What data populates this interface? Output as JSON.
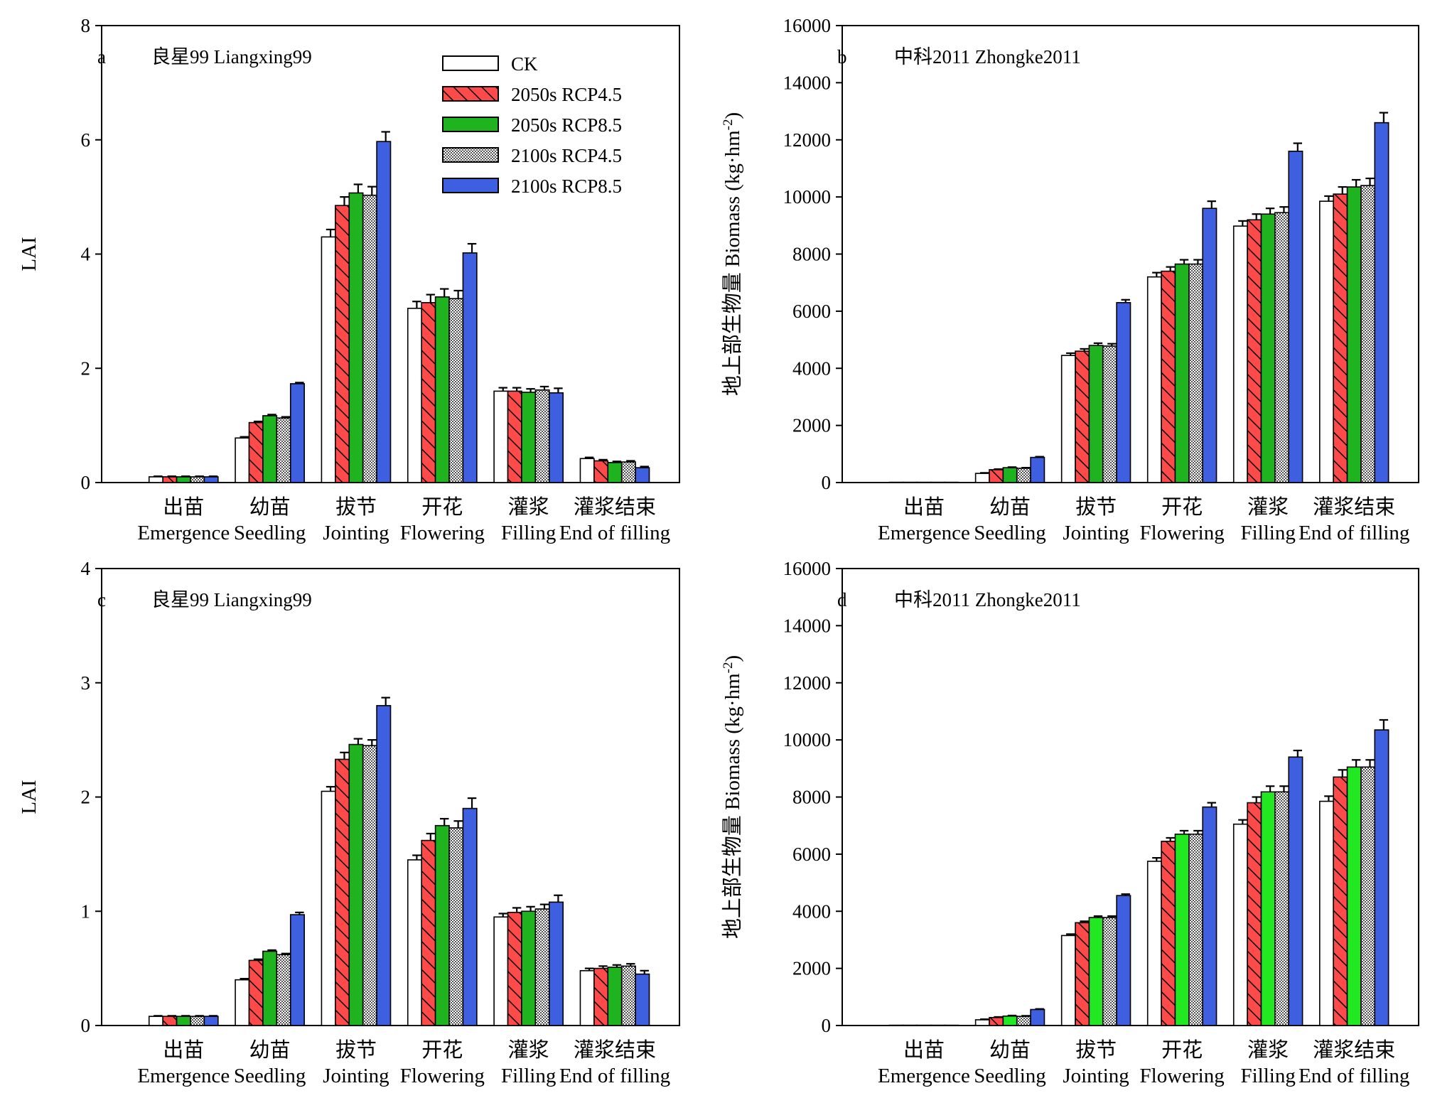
{
  "categories_cn": [
    "出苗",
    "幼苗",
    "拔节",
    "开花",
    "灌浆",
    "灌浆结束"
  ],
  "categories_en": [
    "Emergence",
    "Seedling",
    "Jointing",
    "Flowering",
    "Filling",
    "End of filling"
  ],
  "legend": [
    "CK",
    "2050s RCP4.5",
    "2050s RCP8.5",
    "2100s RCP4.5",
    "2100s RCP8.5"
  ],
  "colors": {
    "ck": "#ffffff",
    "rcp45_2050": "#ff4a4a",
    "rcp85_2050_panel_b": "#1fb41f",
    "rcp85_2050_panel_d": "#22e822",
    "rcp45_2100": "checkered grey",
    "rcp85_2100": "#3d5fe0"
  },
  "chart_data": [
    {
      "id": "a",
      "type": "bar",
      "letter": "a",
      "title": "良星99 Liangxing99",
      "ylabel": "LAI",
      "ylim": [
        0,
        8
      ],
      "yticks": [
        0,
        2,
        4,
        6,
        8
      ],
      "categories": [
        "出苗 Emergence",
        "幼苗 Seedling",
        "拔节 Jointing",
        "开花 Flowering",
        "灌浆 Filling",
        "灌浆结束 End of filling"
      ],
      "series": [
        {
          "name": "CK",
          "values": [
            0.1,
            0.78,
            4.3,
            3.05,
            1.6,
            0.42
          ],
          "errors": [
            0.01,
            0.02,
            0.13,
            0.12,
            0.06,
            0.02
          ]
        },
        {
          "name": "2050s RCP4.5",
          "values": [
            0.1,
            1.05,
            4.85,
            3.15,
            1.6,
            0.38
          ],
          "errors": [
            0.01,
            0.02,
            0.15,
            0.14,
            0.06,
            0.02
          ]
        },
        {
          "name": "2050s RCP8.5",
          "values": [
            0.1,
            1.17,
            5.07,
            3.25,
            1.58,
            0.35
          ],
          "errors": [
            0.01,
            0.02,
            0.15,
            0.14,
            0.06,
            0.02
          ]
        },
        {
          "name": "2100s RCP4.5",
          "values": [
            0.1,
            1.13,
            5.03,
            3.22,
            1.62,
            0.36
          ],
          "errors": [
            0.01,
            0.02,
            0.15,
            0.14,
            0.06,
            0.02
          ]
        },
        {
          "name": "2100s RCP8.5",
          "values": [
            0.1,
            1.73,
            5.97,
            4.02,
            1.57,
            0.26
          ],
          "errors": [
            0.01,
            0.02,
            0.17,
            0.16,
            0.08,
            0.02
          ]
        }
      ],
      "legend_shown": true,
      "legend_position": "top-center"
    },
    {
      "id": "b",
      "type": "bar",
      "letter": "b",
      "title": "中科2011 Zhongke2011",
      "ylabel": "地上部生物量 Biomass (kg·hm⁻²)",
      "ylabel_main": "地上部生物量 Biomass (kg·hm",
      "ylabel_sup": "-2",
      "ylabel_end": ")",
      "ylim": [
        0,
        16000
      ],
      "yticks": [
        0,
        2000,
        4000,
        6000,
        8000,
        10000,
        12000,
        14000,
        16000
      ],
      "categories": [
        "出苗 Emergence",
        "幼苗 Seedling",
        "拔节 Jointing",
        "开花 Flowering",
        "灌浆 Filling",
        "灌浆结束 End of filling"
      ],
      "series": [
        {
          "name": "CK",
          "values": [
            10,
            320,
            4450,
            7200,
            8980,
            9850
          ],
          "errors": [
            5,
            20,
            80,
            150,
            180,
            180
          ]
        },
        {
          "name": "2050s RCP4.5",
          "values": [
            10,
            450,
            4600,
            7400,
            9200,
            10100
          ],
          "errors": [
            5,
            20,
            80,
            150,
            200,
            250
          ]
        },
        {
          "name": "2050s RCP8.5",
          "values": [
            10,
            520,
            4800,
            7650,
            9400,
            10350
          ],
          "errors": [
            5,
            20,
            80,
            150,
            200,
            250
          ]
        },
        {
          "name": "2100s RCP4.5",
          "values": [
            10,
            500,
            4780,
            7650,
            9450,
            10400
          ],
          "errors": [
            5,
            20,
            80,
            150,
            200,
            250
          ]
        },
        {
          "name": "2100s RCP8.5",
          "values": [
            10,
            880,
            6300,
            9600,
            11600,
            12600
          ],
          "errors": [
            5,
            25,
            100,
            250,
            280,
            350
          ]
        }
      ],
      "legend_shown": false
    },
    {
      "id": "c",
      "type": "bar",
      "letter": "c",
      "title": "良星99 Liangxing99",
      "ylabel": "LAI",
      "ylim": [
        0,
        4
      ],
      "yticks": [
        0,
        1,
        2,
        3,
        4
      ],
      "categories": [
        "出苗 Emergence",
        "幼苗 Seedling",
        "拔节 Jointing",
        "开花 Flowering",
        "灌浆 Filling",
        "灌浆结束 End of filling"
      ],
      "series": [
        {
          "name": "CK",
          "values": [
            0.08,
            0.4,
            2.05,
            1.45,
            0.95,
            0.48
          ],
          "errors": [
            0.005,
            0.01,
            0.04,
            0.04,
            0.03,
            0.02
          ]
        },
        {
          "name": "2050s RCP4.5",
          "values": [
            0.08,
            0.57,
            2.33,
            1.62,
            0.99,
            0.5
          ],
          "errors": [
            0.005,
            0.01,
            0.06,
            0.06,
            0.04,
            0.02
          ]
        },
        {
          "name": "2050s RCP8.5",
          "values": [
            0.08,
            0.65,
            2.46,
            1.75,
            1.0,
            0.51
          ],
          "errors": [
            0.005,
            0.01,
            0.05,
            0.06,
            0.04,
            0.02
          ]
        },
        {
          "name": "2100s RCP4.5",
          "values": [
            0.08,
            0.62,
            2.45,
            1.73,
            1.02,
            0.52
          ],
          "errors": [
            0.005,
            0.01,
            0.05,
            0.06,
            0.04,
            0.02
          ]
        },
        {
          "name": "2100s RCP8.5",
          "values": [
            0.08,
            0.97,
            2.8,
            1.9,
            1.08,
            0.45
          ],
          "errors": [
            0.005,
            0.02,
            0.07,
            0.09,
            0.06,
            0.03
          ]
        }
      ],
      "legend_shown": false
    },
    {
      "id": "d",
      "type": "bar",
      "letter": "d",
      "title": "中科2011 Zhongke2011",
      "ylabel": "地上部生物量 Biomass (kg·hm⁻²)",
      "ylabel_main": "地上部生物量 Biomass (kg·hm",
      "ylabel_sup": "-2",
      "ylabel_end": ")",
      "ylim": [
        0,
        16000
      ],
      "yticks": [
        0,
        2000,
        4000,
        6000,
        8000,
        10000,
        12000,
        14000,
        16000
      ],
      "categories": [
        "出苗 Emergence",
        "幼苗 Seedling",
        "拔节 Jointing",
        "开花 Flowering",
        "灌浆 Filling",
        "灌浆结束 End of filling"
      ],
      "series": [
        {
          "name": "CK",
          "values": [
            10,
            200,
            3150,
            5750,
            7050,
            7850
          ],
          "errors": [
            5,
            20,
            50,
            120,
            150,
            180
          ]
        },
        {
          "name": "2050s RCP4.5",
          "values": [
            10,
            280,
            3600,
            6450,
            7800,
            8700
          ],
          "errors": [
            5,
            20,
            50,
            120,
            200,
            250
          ]
        },
        {
          "name": "2050s RCP8.5",
          "values": [
            10,
            330,
            3780,
            6700,
            8180,
            9050
          ],
          "errors": [
            5,
            20,
            50,
            120,
            200,
            250
          ]
        },
        {
          "name": "2100s RCP4.5",
          "values": [
            10,
            320,
            3780,
            6700,
            8180,
            9050
          ],
          "errors": [
            5,
            20,
            50,
            120,
            200,
            250
          ]
        },
        {
          "name": "2100s RCP8.5",
          "values": [
            10,
            560,
            4550,
            7650,
            9400,
            10350
          ],
          "errors": [
            5,
            20,
            50,
            150,
            230,
            350
          ]
        }
      ],
      "legend_shown": false
    }
  ]
}
